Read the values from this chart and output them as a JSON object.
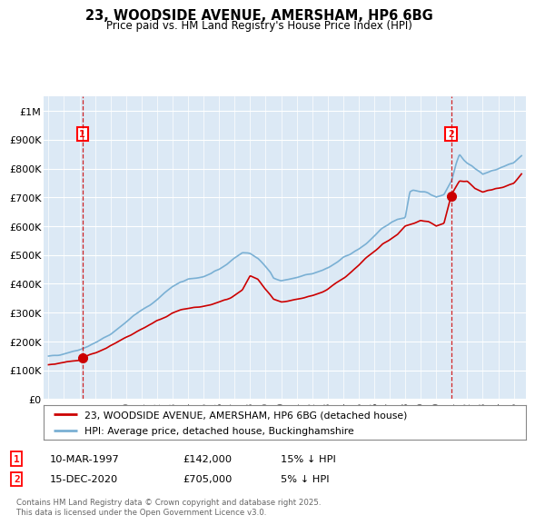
{
  "title": "23, WOODSIDE AVENUE, AMERSHAM, HP6 6BG",
  "subtitle": "Price paid vs. HM Land Registry's House Price Index (HPI)",
  "red_line_color": "#cc0000",
  "blue_line_color": "#7ab0d4",
  "plot_bg": "#dce9f5",
  "annotation1": {
    "label": "1",
    "year": 1997.19,
    "price": 142000,
    "date": "10-MAR-1997",
    "amount": "£142,000",
    "pct": "15% ↓ HPI"
  },
  "annotation2": {
    "label": "2",
    "year": 2020.96,
    "price": 705000,
    "date": "15-DEC-2020",
    "amount": "£705,000",
    "pct": "5% ↓ HPI"
  },
  "legend_line1": "23, WOODSIDE AVENUE, AMERSHAM, HP6 6BG (detached house)",
  "legend_line2": "HPI: Average price, detached house, Buckinghamshire",
  "footer": "Contains HM Land Registry data © Crown copyright and database right 2025.\nThis data is licensed under the Open Government Licence v3.0.",
  "ylim": [
    0,
    1050000
  ],
  "xlim": [
    1994.7,
    2025.8
  ],
  "yticks": [
    0,
    100000,
    200000,
    300000,
    400000,
    500000,
    600000,
    700000,
    800000,
    900000,
    1000000
  ],
  "ytick_labels": [
    "£0",
    "£100K",
    "£200K",
    "£300K",
    "£400K",
    "£500K",
    "£600K",
    "£700K",
    "£800K",
    "£900K",
    "£1M"
  ],
  "xticks": [
    1995,
    1996,
    1997,
    1998,
    1999,
    2000,
    2001,
    2002,
    2003,
    2004,
    2005,
    2006,
    2007,
    2008,
    2009,
    2010,
    2011,
    2012,
    2013,
    2014,
    2015,
    2016,
    2017,
    2018,
    2019,
    2020,
    2021,
    2022,
    2023,
    2024,
    2025
  ],
  "hpi_kx": [
    1995.0,
    1995.5,
    1996.0,
    1996.5,
    1997.0,
    1997.5,
    1998.0,
    1998.5,
    1999.0,
    1999.5,
    2000.0,
    2000.5,
    2001.0,
    2001.5,
    2002.0,
    2002.5,
    2003.0,
    2003.5,
    2004.0,
    2004.5,
    2005.0,
    2005.5,
    2006.0,
    2006.5,
    2007.0,
    2007.5,
    2008.0,
    2008.5,
    2009.0,
    2009.3,
    2009.5,
    2010.0,
    2010.5,
    2011.0,
    2011.5,
    2012.0,
    2012.5,
    2013.0,
    2013.5,
    2014.0,
    2014.5,
    2015.0,
    2015.5,
    2016.0,
    2016.5,
    2017.0,
    2017.5,
    2018.0,
    2018.3,
    2018.5,
    2019.0,
    2019.5,
    2020.0,
    2020.5,
    2021.0,
    2021.3,
    2021.5,
    2021.8,
    2022.0,
    2022.3,
    2022.5,
    2022.8,
    2023.0,
    2023.5,
    2024.0,
    2024.5,
    2025.0,
    2025.5
  ],
  "hpi_ky": [
    148000,
    152000,
    158000,
    165000,
    172000,
    182000,
    195000,
    210000,
    225000,
    245000,
    268000,
    290000,
    308000,
    325000,
    345000,
    370000,
    390000,
    405000,
    415000,
    420000,
    425000,
    435000,
    450000,
    468000,
    490000,
    508000,
    505000,
    490000,
    460000,
    440000,
    420000,
    410000,
    415000,
    420000,
    430000,
    435000,
    445000,
    455000,
    470000,
    490000,
    505000,
    520000,
    540000,
    565000,
    590000,
    610000,
    625000,
    630000,
    720000,
    725000,
    720000,
    715000,
    700000,
    710000,
    760000,
    820000,
    850000,
    830000,
    820000,
    810000,
    800000,
    790000,
    780000,
    790000,
    800000,
    810000,
    820000,
    845000
  ],
  "prop_kx": [
    1995.0,
    1995.5,
    1996.0,
    1996.5,
    1997.0,
    1997.19,
    1997.5,
    1998.0,
    1998.5,
    1999.0,
    1999.5,
    2000.0,
    2000.5,
    2001.0,
    2001.5,
    2002.0,
    2002.5,
    2003.0,
    2003.5,
    2004.0,
    2004.5,
    2005.0,
    2005.5,
    2006.0,
    2006.5,
    2007.0,
    2007.5,
    2008.0,
    2008.5,
    2009.0,
    2009.3,
    2009.5,
    2010.0,
    2010.5,
    2011.0,
    2011.5,
    2012.0,
    2012.5,
    2013.0,
    2013.5,
    2014.0,
    2014.5,
    2015.0,
    2015.5,
    2016.0,
    2016.5,
    2017.0,
    2017.5,
    2018.0,
    2018.5,
    2019.0,
    2019.5,
    2020.0,
    2020.5,
    2020.96,
    2021.0,
    2021.5,
    2022.0,
    2022.5,
    2023.0,
    2023.5,
    2024.0,
    2024.5,
    2025.0,
    2025.5
  ],
  "prop_ky": [
    118000,
    122000,
    126000,
    132000,
    136000,
    142000,
    150000,
    160000,
    172000,
    185000,
    200000,
    215000,
    228000,
    243000,
    258000,
    272000,
    285000,
    298000,
    308000,
    315000,
    318000,
    322000,
    328000,
    336000,
    345000,
    360000,
    378000,
    428000,
    415000,
    380000,
    360000,
    345000,
    335000,
    340000,
    345000,
    352000,
    360000,
    368000,
    380000,
    400000,
    420000,
    440000,
    465000,
    490000,
    510000,
    535000,
    553000,
    570000,
    600000,
    610000,
    620000,
    615000,
    600000,
    610000,
    705000,
    710000,
    755000,
    755000,
    730000,
    720000,
    725000,
    730000,
    740000,
    750000,
    780000
  ]
}
